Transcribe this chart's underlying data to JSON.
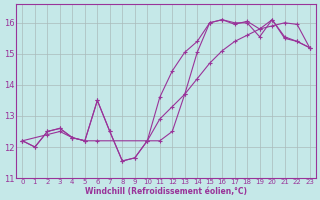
{
  "xlabel": "Windchill (Refroidissement éolien,°C)",
  "bg_color": "#c5e8e8",
  "line_color": "#993399",
  "grid_color": "#aabbbb",
  "xlim": [
    -0.5,
    23.5
  ],
  "ylim": [
    11,
    16.6
  ],
  "yticks": [
    11,
    12,
    13,
    14,
    15,
    16
  ],
  "xticks": [
    0,
    1,
    2,
    3,
    4,
    5,
    6,
    7,
    8,
    9,
    10,
    11,
    12,
    13,
    14,
    15,
    16,
    17,
    18,
    19,
    20,
    21,
    22,
    23
  ],
  "line1_x": [
    0,
    1,
    2,
    3,
    4,
    5,
    6,
    7,
    8,
    9,
    10,
    11,
    12,
    13,
    14,
    15,
    16,
    17,
    18,
    19,
    20,
    21,
    22,
    23
  ],
  "line1_y": [
    12.2,
    12.0,
    12.5,
    12.6,
    12.3,
    12.2,
    13.5,
    12.5,
    11.55,
    11.65,
    12.2,
    12.2,
    12.5,
    13.7,
    15.05,
    16.0,
    16.1,
    16.0,
    16.0,
    15.55,
    16.1,
    15.5,
    15.4,
    15.2
  ],
  "line2_x": [
    0,
    2,
    3,
    4,
    5,
    6,
    10,
    11,
    12,
    13,
    14,
    15,
    16,
    17,
    18,
    19,
    20,
    21,
    22,
    23
  ],
  "line2_y": [
    12.2,
    12.4,
    12.5,
    12.3,
    12.2,
    12.2,
    12.2,
    12.9,
    13.3,
    13.7,
    14.2,
    14.7,
    15.1,
    15.4,
    15.6,
    15.8,
    15.9,
    16.0,
    15.95,
    15.2
  ],
  "line3_x": [
    0,
    1,
    2,
    3,
    4,
    5,
    6,
    7,
    8,
    9,
    10,
    11,
    12,
    13,
    14,
    15,
    16,
    17,
    18,
    19,
    20,
    21,
    22,
    23
  ],
  "line3_y": [
    12.2,
    12.0,
    12.5,
    12.6,
    12.3,
    12.2,
    13.5,
    12.5,
    11.55,
    11.65,
    12.2,
    13.6,
    14.45,
    15.05,
    15.4,
    16.0,
    16.1,
    15.95,
    16.05,
    15.8,
    16.1,
    15.55,
    15.4,
    15.2
  ]
}
